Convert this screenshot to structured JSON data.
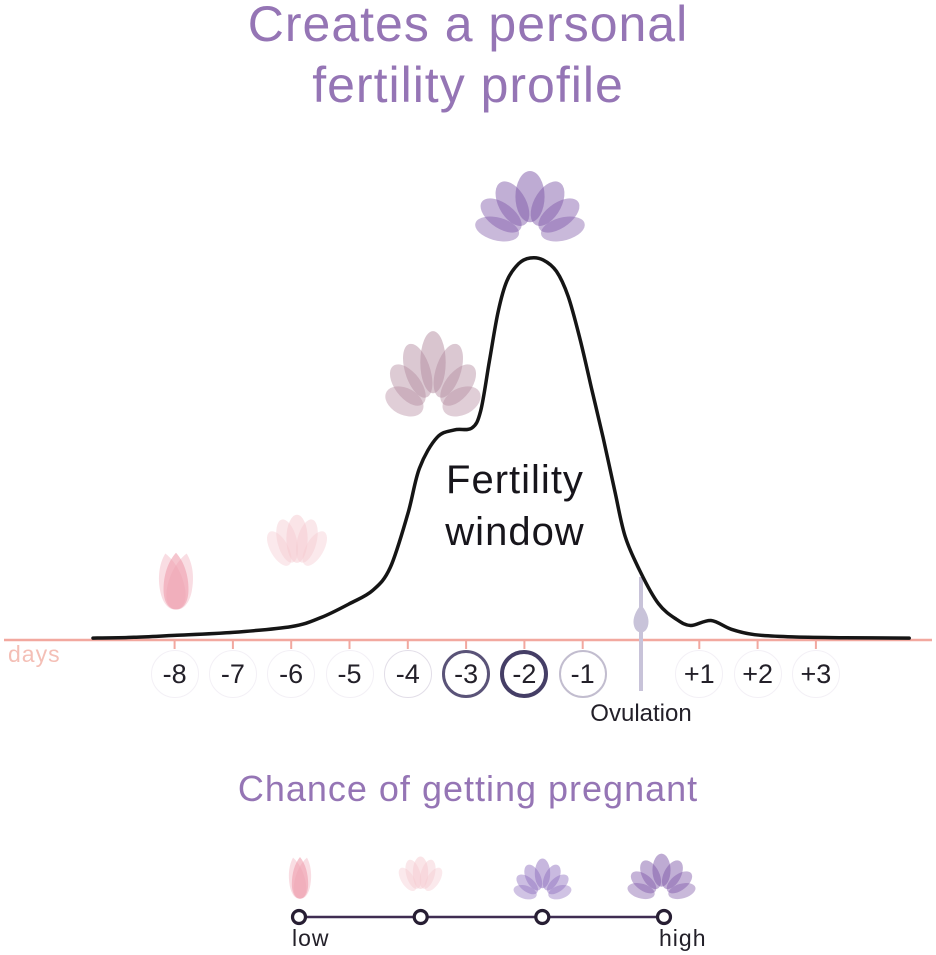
{
  "title": {
    "line1": "Creates a personal",
    "line2": "fertility profile"
  },
  "chart": {
    "axis_label": "days",
    "annotation": {
      "line1": "Fertility",
      "line2": "window"
    },
    "ovulation_label": "Ovulation",
    "days": [
      {
        "label": "-8",
        "day": -8,
        "ring": "faint"
      },
      {
        "label": "-7",
        "day": -7,
        "ring": "faint"
      },
      {
        "label": "-6",
        "day": -6,
        "ring": "faint"
      },
      {
        "label": "-5",
        "day": -5,
        "ring": "faint"
      },
      {
        "label": "-4",
        "day": -4,
        "ring": "light"
      },
      {
        "label": "-3",
        "day": -3,
        "ring": "medium"
      },
      {
        "label": "-2",
        "day": -2,
        "ring": "strong"
      },
      {
        "label": "-1",
        "day": -1,
        "ring": "lavender"
      },
      {
        "label": "+1",
        "day": 1,
        "ring": "faint"
      },
      {
        "label": "+2",
        "day": 2,
        "ring": "faint"
      },
      {
        "label": "+3",
        "day": 3,
        "ring": "faint"
      }
    ]
  },
  "chart_data": {
    "type": "line",
    "title": "Creates a personal fertility profile",
    "xlabel": "days",
    "ylabel": "chance of getting pregnant (relative, unlabeled axis)",
    "x_categories": [
      "-8",
      "-7",
      "-6",
      "-5",
      "-4",
      "-3",
      "-2",
      "-1",
      "+1",
      "+2",
      "+3"
    ],
    "ovulation_day": 0,
    "annotation": "Fertility window",
    "xlim": [
      -9.4,
      4.6
    ],
    "ylim": [
      0,
      1
    ],
    "grid": false,
    "points": [
      [
        -9.4,
        0.005
      ],
      [
        -8.7,
        0.007
      ],
      [
        -8,
        0.012
      ],
      [
        -7,
        0.02
      ],
      [
        -6,
        0.035
      ],
      [
        -5.5,
        0.058
      ],
      [
        -5,
        0.095
      ],
      [
        -4.6,
        0.13
      ],
      [
        -4.3,
        0.19
      ],
      [
        -4.0,
        0.33
      ],
      [
        -3.8,
        0.45
      ],
      [
        -3.5,
        0.53
      ],
      [
        -3.2,
        0.55
      ],
      [
        -2.9,
        0.555
      ],
      [
        -2.75,
        0.6
      ],
      [
        -2.6,
        0.73
      ],
      [
        -2.45,
        0.86
      ],
      [
        -2.3,
        0.94
      ],
      [
        -2.1,
        0.985
      ],
      [
        -1.9,
        1.0
      ],
      [
        -1.68,
        0.995
      ],
      [
        -1.45,
        0.965
      ],
      [
        -1.25,
        0.9
      ],
      [
        -1.05,
        0.79
      ],
      [
        -0.85,
        0.66
      ],
      [
        -0.65,
        0.53
      ],
      [
        -0.45,
        0.39
      ],
      [
        -0.27,
        0.27
      ],
      [
        0,
        0.175
      ],
      [
        0.3,
        0.095
      ],
      [
        0.6,
        0.055
      ],
      [
        0.85,
        0.038
      ],
      [
        1.2,
        0.051
      ],
      [
        1.55,
        0.028
      ],
      [
        1.95,
        0.014
      ],
      [
        2.6,
        0.008
      ],
      [
        3.5,
        0.006
      ],
      [
        4.6,
        0.005
      ]
    ],
    "flower_markers": [
      {
        "near_day": -8,
        "flower": "single-petal-bud",
        "meaning": "low chance"
      },
      {
        "near_day": -6,
        "flower": "closed-bud",
        "meaning": "rising chance"
      },
      {
        "near_day": -3.6,
        "flower": "lotus-medium",
        "meaning": "high chance"
      },
      {
        "near_day": -1.9,
        "flower": "lotus-full",
        "meaning": "peak chance"
      }
    ]
  },
  "legend": {
    "title": "Chance of getting pregnant",
    "low_label": "low",
    "high_label": "high",
    "levels": [
      {
        "flower": "single-petal-bud",
        "level": "low"
      },
      {
        "flower": "closed-bud",
        "level": "medium-low"
      },
      {
        "flower": "lotus-medium",
        "level": "medium-high"
      },
      {
        "flower": "lotus-full",
        "level": "high"
      }
    ]
  },
  "colors": {
    "title_purple": "#9575b5",
    "ink": "#232029",
    "curve_black": "#151515",
    "axis_pink": "#f2a89f",
    "days_label_pink": "#f4bfb6",
    "lavender": "#c8c3d9",
    "ring_faint": "#f3f0f6",
    "ring_light": "#e2dee8",
    "ring_medium": "#5a5378",
    "ring_strong": "#453e66",
    "ring_lavender": "#c2bdcf",
    "scale_line": "#3f2d52",
    "node_stroke": "#271e33",
    "flower_pink": "#ee9fae",
    "flower_blush": "#f5c9d0",
    "flower_mauve": "#b48ba0",
    "flower_purple_mid": "#8f6fbe",
    "flower_purple": "#7e57a8"
  }
}
